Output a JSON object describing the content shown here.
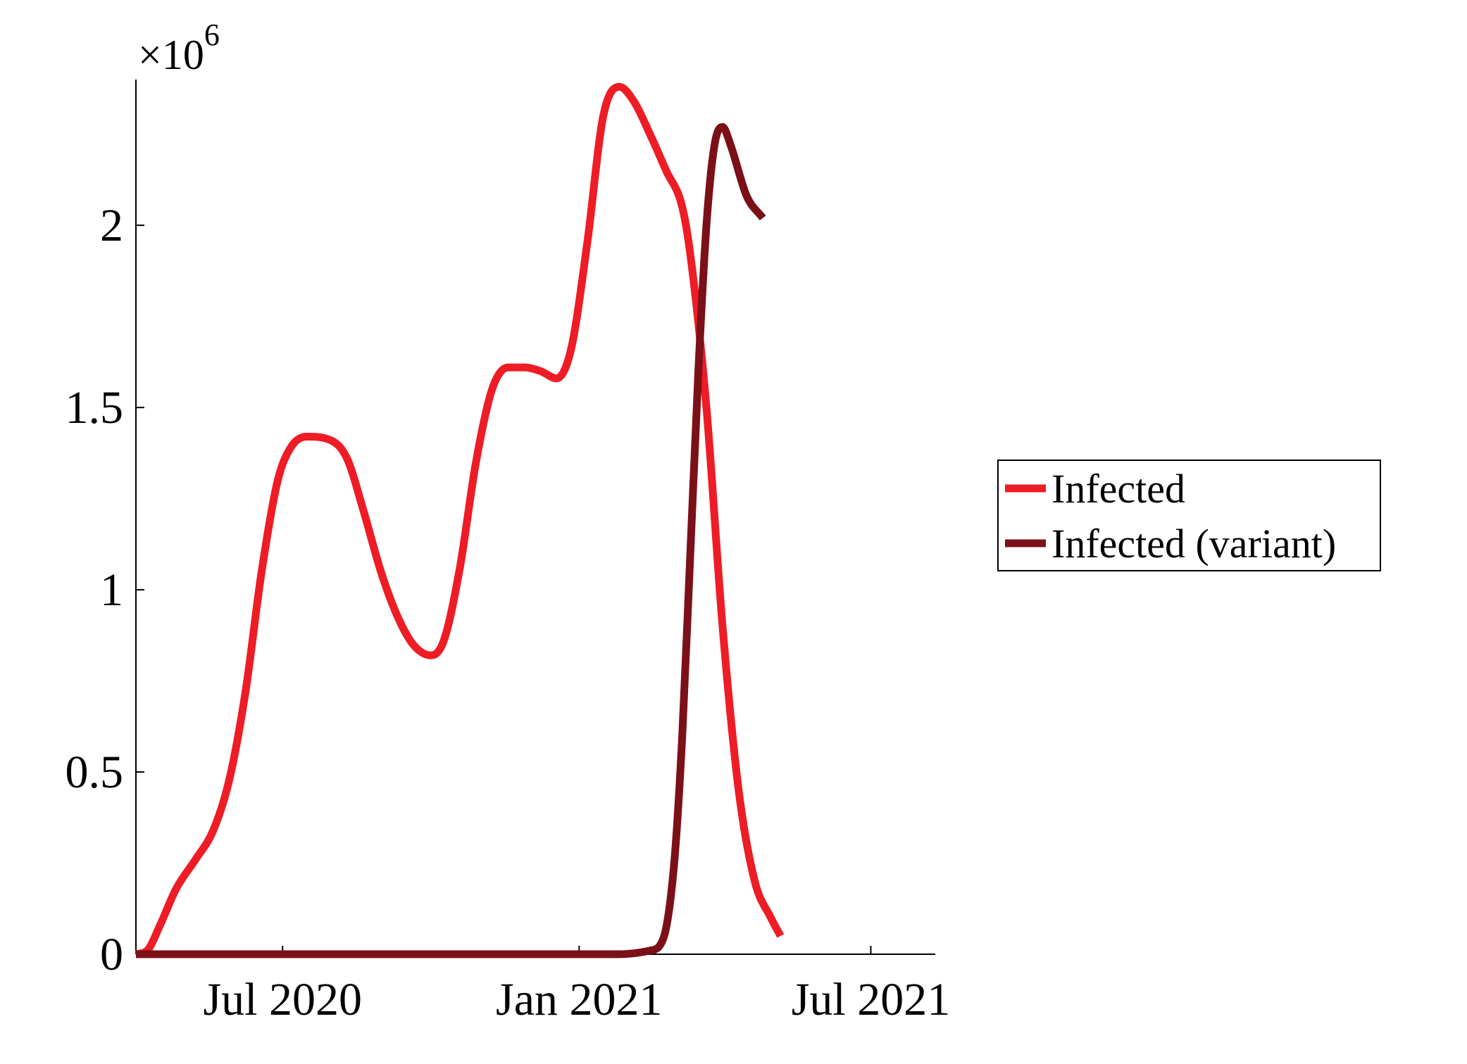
{
  "chart_data": {
    "type": "line",
    "title": "",
    "xlabel": "",
    "ylabel": "",
    "y_multiplier": {
      "base": "×10",
      "exponent": "6"
    },
    "xlim": [
      "2020-04-01",
      "2021-08-10"
    ],
    "ylim": [
      0,
      2.4
    ],
    "y_ticks": [
      {
        "value": 0,
        "label": "0"
      },
      {
        "value": 0.5,
        "label": "0.5"
      },
      {
        "value": 1,
        "label": "1"
      },
      {
        "value": 1.5,
        "label": "1.5"
      },
      {
        "value": 2,
        "label": "2"
      }
    ],
    "x_ticks": [
      {
        "value": "2020-07-01",
        "label": "Jul 2020"
      },
      {
        "value": "2021-01-01",
        "label": "Jan 2021"
      },
      {
        "value": "2021-07-01",
        "label": "Jul 2021"
      }
    ],
    "grid": false,
    "legend_position": "right",
    "series": [
      {
        "name": "Infected",
        "color": "#ee1c25",
        "points": [
          [
            "2020-04-01",
            0.0
          ],
          [
            "2020-04-08",
            0.01
          ],
          [
            "2020-04-16",
            0.08
          ],
          [
            "2020-04-26",
            0.18
          ],
          [
            "2020-05-08",
            0.26
          ],
          [
            "2020-05-19",
            0.34
          ],
          [
            "2020-05-29",
            0.48
          ],
          [
            "2020-06-08",
            0.72
          ],
          [
            "2020-06-18",
            1.05
          ],
          [
            "2020-06-28",
            1.3
          ],
          [
            "2020-07-06",
            1.39
          ],
          [
            "2020-07-16",
            1.42
          ],
          [
            "2020-07-31",
            1.41
          ],
          [
            "2020-08-10",
            1.36
          ],
          [
            "2020-08-20",
            1.22
          ],
          [
            "2020-08-31",
            1.05
          ],
          [
            "2020-09-10",
            0.93
          ],
          [
            "2020-09-20",
            0.85
          ],
          [
            "2020-10-01",
            0.82
          ],
          [
            "2020-10-09",
            0.86
          ],
          [
            "2020-10-19",
            1.06
          ],
          [
            "2020-10-29",
            1.35
          ],
          [
            "2020-11-08",
            1.55
          ],
          [
            "2020-11-18",
            1.61
          ],
          [
            "2020-11-28",
            1.61
          ],
          [
            "2020-12-08",
            1.6
          ],
          [
            "2020-12-18",
            1.58
          ],
          [
            "2020-12-27",
            1.66
          ],
          [
            "2021-01-06",
            1.95
          ],
          [
            "2021-01-16",
            2.3
          ],
          [
            "2021-01-26",
            2.38
          ],
          [
            "2021-02-04",
            2.34
          ],
          [
            "2021-02-15",
            2.24
          ],
          [
            "2021-02-24",
            2.15
          ],
          [
            "2021-03-06",
            2.05
          ],
          [
            "2021-03-11",
            1.92
          ],
          [
            "2021-03-21",
            1.5
          ],
          [
            "2021-03-31",
            0.9
          ],
          [
            "2021-04-10",
            0.45
          ],
          [
            "2021-04-20",
            0.2
          ],
          [
            "2021-04-30",
            0.1
          ],
          [
            "2021-05-06",
            0.05
          ]
        ]
      },
      {
        "name": "Infected (variant)",
        "color": "#7b1018",
        "points": [
          [
            "2020-04-01",
            0.0
          ],
          [
            "2020-10-01",
            0.0
          ],
          [
            "2021-01-25",
            0.0
          ],
          [
            "2021-02-14",
            0.01
          ],
          [
            "2021-02-22",
            0.04
          ],
          [
            "2021-03-01",
            0.25
          ],
          [
            "2021-03-06",
            0.6
          ],
          [
            "2021-03-11",
            1.1
          ],
          [
            "2021-03-16",
            1.6
          ],
          [
            "2021-03-21",
            2.0
          ],
          [
            "2021-03-26",
            2.22
          ],
          [
            "2021-03-31",
            2.27
          ],
          [
            "2021-04-05",
            2.22
          ],
          [
            "2021-04-15",
            2.08
          ],
          [
            "2021-04-25",
            2.02
          ]
        ]
      }
    ]
  }
}
